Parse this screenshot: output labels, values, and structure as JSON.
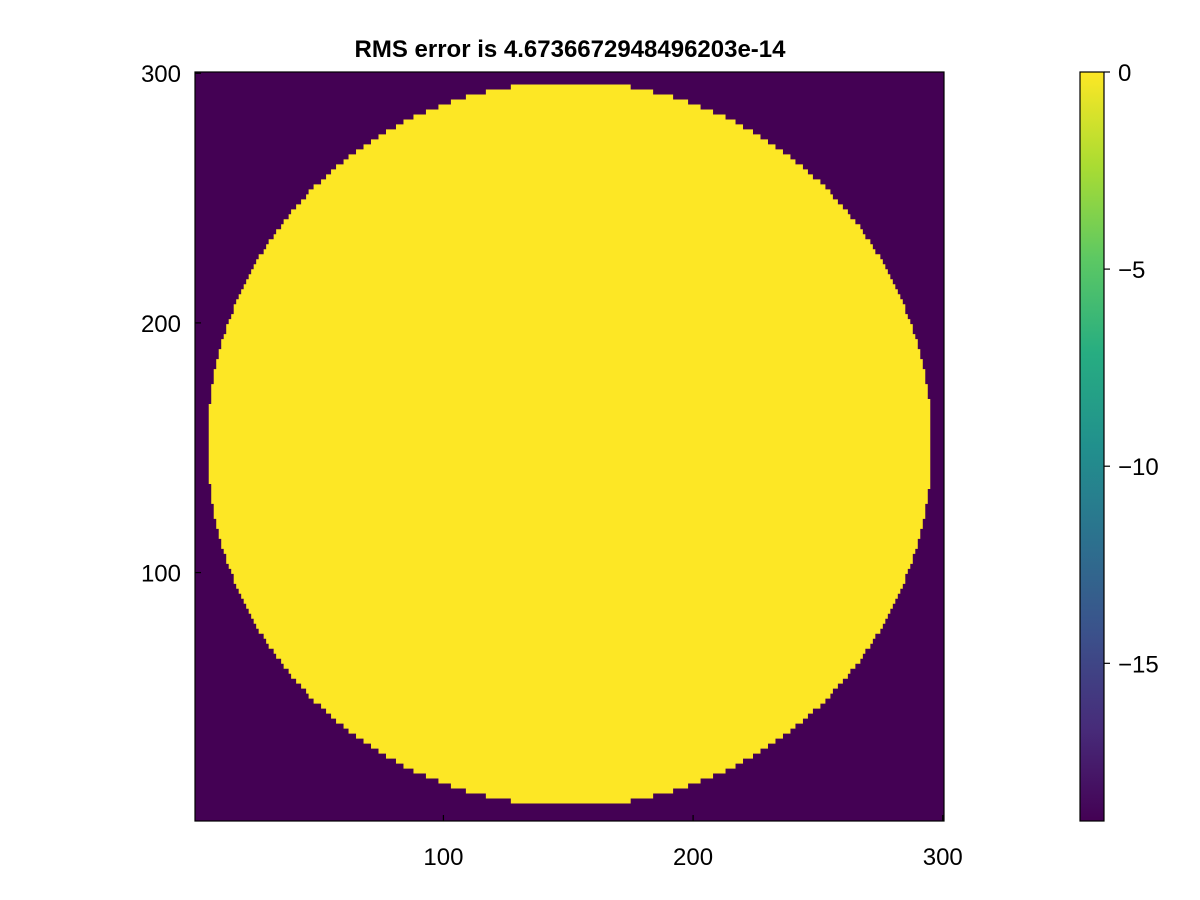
{
  "chart_data": {
    "type": "heatmap",
    "title": "RMS error is 4.6736672948496203e-14",
    "xlabel": "",
    "ylabel": "",
    "xlim": [
      0.5,
      300.5
    ],
    "ylim": [
      0.5,
      300.5
    ],
    "x_ticks": [
      100,
      200,
      300
    ],
    "x_tick_labels": [
      "100",
      "200",
      "300"
    ],
    "y_ticks": [
      100,
      200,
      300
    ],
    "y_tick_labels": [
      "100",
      "200",
      "300"
    ],
    "grid": false,
    "colormap": "viridis",
    "colorbar": {
      "limits": [
        -19,
        0
      ],
      "ticks": [
        0,
        -5,
        -10,
        -15
      ],
      "tick_labels": [
        "0",
        "−5",
        "−10",
        "−15"
      ],
      "stops": [
        "#440154",
        "#472c7a",
        "#3b518b",
        "#2c718e",
        "#21908d",
        "#27ad81",
        "#5cc863",
        "#aadc32",
        "#fde725"
      ]
    },
    "field": {
      "description": "disk of value 0 inside, -19 outside",
      "center": [
        150.5,
        150.5
      ],
      "radius": 145,
      "inside_value": 0,
      "outside_value": -19
    }
  }
}
